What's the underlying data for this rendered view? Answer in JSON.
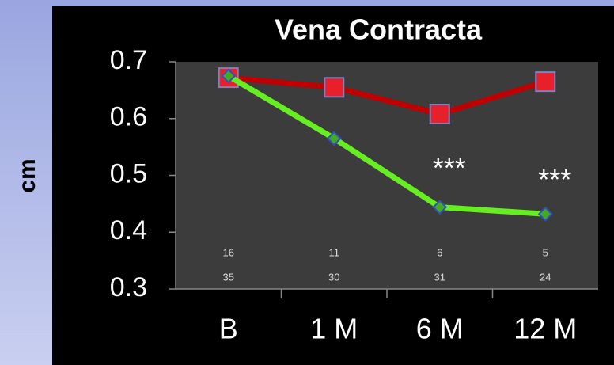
{
  "chart_data": {
    "type": "line",
    "title": "Vena Contracta",
    "y_label": "cm",
    "categories": [
      "B",
      "1 M",
      "6 M",
      "12 M"
    ],
    "series": [
      {
        "color": "#c00000",
        "marker_color": "#e8202a",
        "marker": "square",
        "values": [
          0.672,
          0.655,
          0.608,
          0.665
        ]
      },
      {
        "color": "#66ee22",
        "marker_color": "#44aa22",
        "marker": "diamond",
        "values": [
          0.675,
          0.565,
          0.444,
          0.432
        ]
      }
    ],
    "ylim": [
      0.3,
      0.7
    ],
    "yticks": [
      0.3,
      0.4,
      0.5,
      0.6,
      0.7
    ],
    "grid": false,
    "annotations": [
      {
        "text": "***",
        "category": 2,
        "y": 0.52
      },
      {
        "text": "***",
        "category": 3,
        "y": 0.5
      }
    ],
    "count_rows": [
      [
        "16",
        "11",
        "6",
        "5"
      ],
      [
        "35",
        "30",
        "31",
        "24"
      ]
    ]
  }
}
